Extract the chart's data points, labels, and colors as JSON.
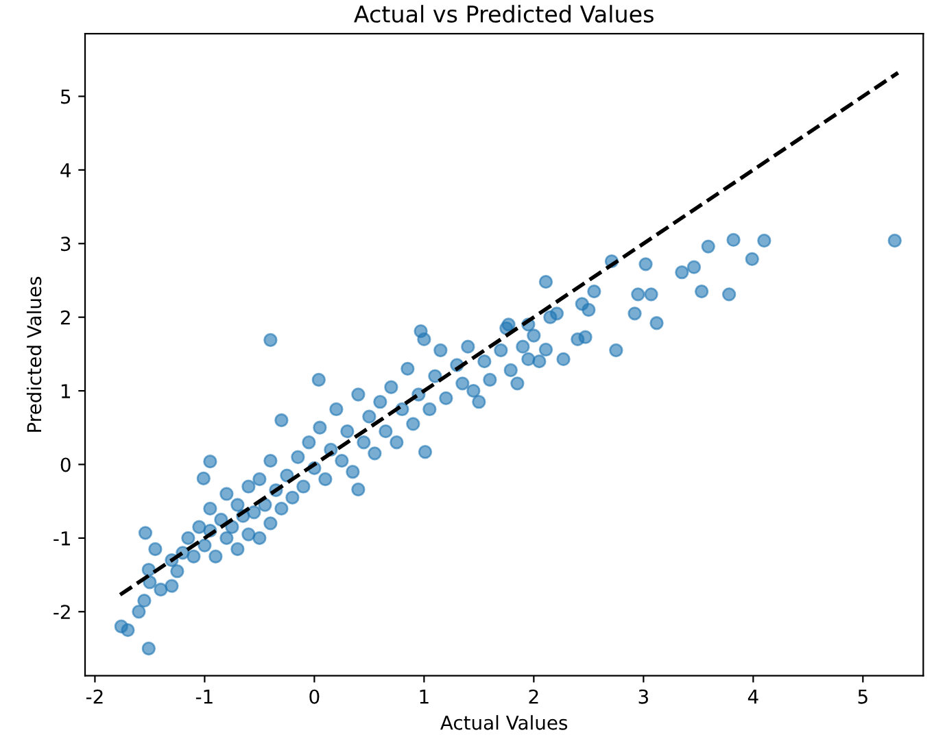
{
  "chart_data": {
    "type": "scatter",
    "title": "Actual vs Predicted Values",
    "xlabel": "Actual Values",
    "ylabel": "Predicted Values",
    "xlim": [
      -2.09,
      5.55
    ],
    "ylim": [
      -2.87,
      5.85
    ],
    "xticks": [
      -2,
      -1,
      0,
      1,
      2,
      3,
      4,
      5
    ],
    "yticks": [
      -2,
      -1,
      0,
      1,
      2,
      3,
      4,
      5
    ],
    "grid": false,
    "series": [
      {
        "color": "#1f77b4",
        "marker": "circle",
        "x": [
          -1.7,
          -1.6,
          -1.55,
          -1.5,
          -1.45,
          -1.4,
          -1.3,
          -1.3,
          -1.25,
          -1.2,
          -1.15,
          -1.1,
          -1.05,
          -1.0,
          -0.95,
          -0.95,
          -0.9,
          -0.85,
          -0.8,
          -0.8,
          -0.75,
          -0.7,
          -0.7,
          -0.65,
          -0.6,
          -0.6,
          -0.55,
          -0.5,
          -0.5,
          -0.45,
          -0.4,
          -0.4,
          -0.35,
          -0.3,
          -0.3,
          -0.25,
          -0.2,
          -0.15,
          -0.1,
          -0.05,
          0.0,
          0.05,
          0.1,
          0.15,
          0.2,
          0.25,
          0.3,
          0.35,
          0.4,
          0.45,
          0.5,
          0.55,
          0.6,
          0.65,
          0.7,
          0.75,
          0.8,
          0.85,
          0.9,
          0.95,
          1.0,
          1.05,
          1.1,
          1.15,
          1.2,
          1.3,
          1.35,
          1.4,
          1.5,
          1.55,
          1.6,
          1.7,
          1.75,
          1.85,
          1.9,
          2.0,
          2.05,
          2.15,
          2.4,
          2.5,
          5.29,
          4.1,
          3.99,
          3.82,
          3.78,
          3.59,
          3.53,
          3.46,
          3.35,
          3.12,
          3.07,
          3.02,
          2.95,
          2.92,
          2.71,
          2.75,
          2.55,
          2.47,
          2.44,
          2.21,
          2.11,
          2.11,
          2.27,
          1.95,
          1.77,
          1.95,
          1.79,
          1.45,
          0.97,
          1.01,
          -0.4,
          -1.51,
          -1.51,
          -1.76,
          -1.54,
          -0.95,
          -1.01,
          0.04,
          0.4
        ],
        "values": [
          -2.25,
          -2.0,
          -1.85,
          -1.6,
          -1.15,
          -1.7,
          -1.3,
          -1.65,
          -1.45,
          -1.2,
          -1.0,
          -1.25,
          -0.85,
          -1.1,
          -0.9,
          -0.6,
          -1.25,
          -0.75,
          -1.0,
          -0.4,
          -0.85,
          -1.15,
          -0.55,
          -0.7,
          -0.95,
          -0.3,
          -0.65,
          -1.0,
          -0.2,
          -0.55,
          -0.8,
          0.05,
          -0.35,
          0.6,
          -0.6,
          -0.15,
          -0.45,
          0.1,
          -0.3,
          0.3,
          -0.05,
          0.5,
          -0.2,
          0.2,
          0.75,
          0.05,
          0.45,
          -0.1,
          0.95,
          0.3,
          0.65,
          0.15,
          0.85,
          0.45,
          1.05,
          0.3,
          0.75,
          1.3,
          0.55,
          0.95,
          1.7,
          0.75,
          1.2,
          1.55,
          0.9,
          1.35,
          1.1,
          1.6,
          0.85,
          1.4,
          1.15,
          1.55,
          1.85,
          1.1,
          1.6,
          1.75,
          1.4,
          2.0,
          1.7,
          2.1,
          3.04,
          3.04,
          2.79,
          3.05,
          2.31,
          2.96,
          2.35,
          2.68,
          2.61,
          1.92,
          2.31,
          2.72,
          2.31,
          2.05,
          2.76,
          1.55,
          2.35,
          1.73,
          2.18,
          2.05,
          2.48,
          1.56,
          1.43,
          1.43,
          1.9,
          1.9,
          1.28,
          1.0,
          1.81,
          0.17,
          1.69,
          -1.43,
          -2.5,
          -2.2,
          -0.93,
          0.04,
          -0.19,
          1.15,
          -0.34
        ]
      },
      {
        "type": "line",
        "color": "#000000",
        "line_style": "dashed",
        "marker": "none",
        "x": [
          -1.77,
          5.32
        ],
        "values": [
          -1.77,
          5.32
        ]
      }
    ]
  }
}
